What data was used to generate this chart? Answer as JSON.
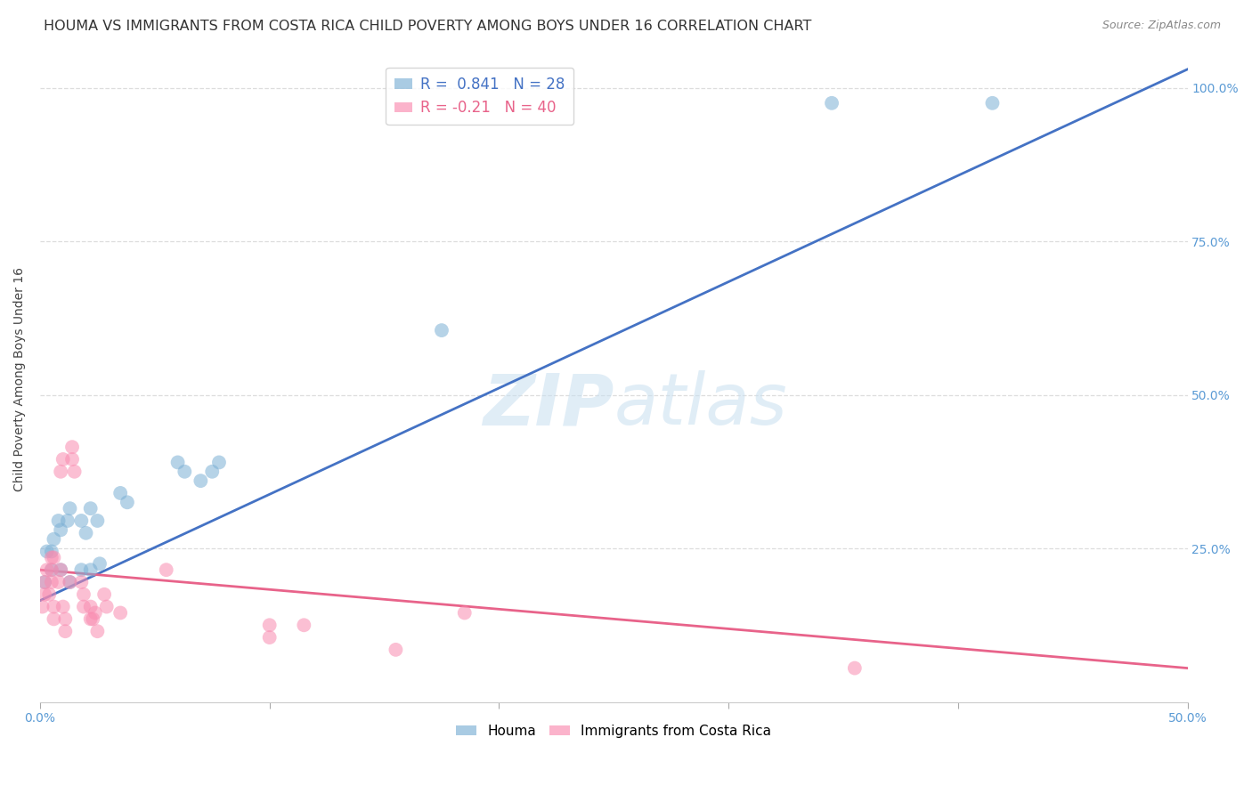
{
  "title": "HOUMA VS IMMIGRANTS FROM COSTA RICA CHILD POVERTY AMONG BOYS UNDER 16 CORRELATION CHART",
  "source": "Source: ZipAtlas.com",
  "ylabel": "Child Poverty Among Boys Under 16",
  "xlim": [
    0.0,
    0.5
  ],
  "ylim": [
    0.0,
    1.05
  ],
  "xticks": [
    0.0,
    0.1,
    0.2,
    0.3,
    0.4,
    0.5
  ],
  "xtick_labels": [
    "0.0%",
    "",
    "",
    "",
    "",
    "50.0%"
  ],
  "yticks": [
    0.25,
    0.5,
    0.75,
    1.0
  ],
  "ytick_labels": [
    "25.0%",
    "50.0%",
    "75.0%",
    "100.0%"
  ],
  "background_color": "#ffffff",
  "watermark": "ZIPatlas",
  "blue_R": 0.841,
  "blue_N": 28,
  "pink_R": -0.21,
  "pink_N": 40,
  "blue_color": "#7BAFD4",
  "pink_color": "#F98BB0",
  "blue_line_color": "#4472C4",
  "pink_line_color": "#E8638A",
  "blue_dots": [
    [
      0.002,
      0.195
    ],
    [
      0.003,
      0.245
    ],
    [
      0.005,
      0.245
    ],
    [
      0.006,
      0.265
    ],
    [
      0.008,
      0.295
    ],
    [
      0.009,
      0.28
    ],
    [
      0.012,
      0.295
    ],
    [
      0.013,
      0.315
    ],
    [
      0.018,
      0.295
    ],
    [
      0.02,
      0.275
    ],
    [
      0.022,
      0.315
    ],
    [
      0.025,
      0.295
    ],
    [
      0.035,
      0.34
    ],
    [
      0.038,
      0.325
    ],
    [
      0.06,
      0.39
    ],
    [
      0.063,
      0.375
    ],
    [
      0.07,
      0.36
    ],
    [
      0.075,
      0.375
    ],
    [
      0.078,
      0.39
    ],
    [
      0.005,
      0.215
    ],
    [
      0.009,
      0.215
    ],
    [
      0.013,
      0.195
    ],
    [
      0.018,
      0.215
    ],
    [
      0.022,
      0.215
    ],
    [
      0.026,
      0.225
    ],
    [
      0.345,
      0.975
    ],
    [
      0.415,
      0.975
    ],
    [
      0.175,
      0.605
    ]
  ],
  "pink_dots": [
    [
      0.001,
      0.155
    ],
    [
      0.002,
      0.175
    ],
    [
      0.002,
      0.195
    ],
    [
      0.003,
      0.215
    ],
    [
      0.004,
      0.175
    ],
    [
      0.005,
      0.195
    ],
    [
      0.005,
      0.215
    ],
    [
      0.005,
      0.235
    ],
    [
      0.006,
      0.235
    ],
    [
      0.006,
      0.155
    ],
    [
      0.006,
      0.135
    ],
    [
      0.008,
      0.195
    ],
    [
      0.009,
      0.215
    ],
    [
      0.009,
      0.375
    ],
    [
      0.01,
      0.395
    ],
    [
      0.01,
      0.155
    ],
    [
      0.011,
      0.135
    ],
    [
      0.011,
      0.115
    ],
    [
      0.013,
      0.195
    ],
    [
      0.014,
      0.395
    ],
    [
      0.014,
      0.415
    ],
    [
      0.015,
      0.375
    ],
    [
      0.018,
      0.195
    ],
    [
      0.019,
      0.175
    ],
    [
      0.019,
      0.155
    ],
    [
      0.022,
      0.155
    ],
    [
      0.022,
      0.135
    ],
    [
      0.023,
      0.135
    ],
    [
      0.024,
      0.145
    ],
    [
      0.025,
      0.115
    ],
    [
      0.028,
      0.175
    ],
    [
      0.029,
      0.155
    ],
    [
      0.035,
      0.145
    ],
    [
      0.055,
      0.215
    ],
    [
      0.1,
      0.125
    ],
    [
      0.1,
      0.105
    ],
    [
      0.115,
      0.125
    ],
    [
      0.155,
      0.085
    ],
    [
      0.355,
      0.055
    ],
    [
      0.185,
      0.145
    ]
  ],
  "blue_line_x": [
    0.0,
    0.5
  ],
  "blue_line_y": [
    0.165,
    1.03
  ],
  "pink_line_x": [
    0.0,
    0.5
  ],
  "pink_line_y": [
    0.215,
    0.055
  ],
  "grid_color": "#DDDDDD",
  "grid_linestyle": "--",
  "tick_color": "#5B9BD5",
  "title_fontsize": 11.5,
  "axis_label_fontsize": 10,
  "tick_fontsize": 10,
  "legend_fontsize": 12
}
